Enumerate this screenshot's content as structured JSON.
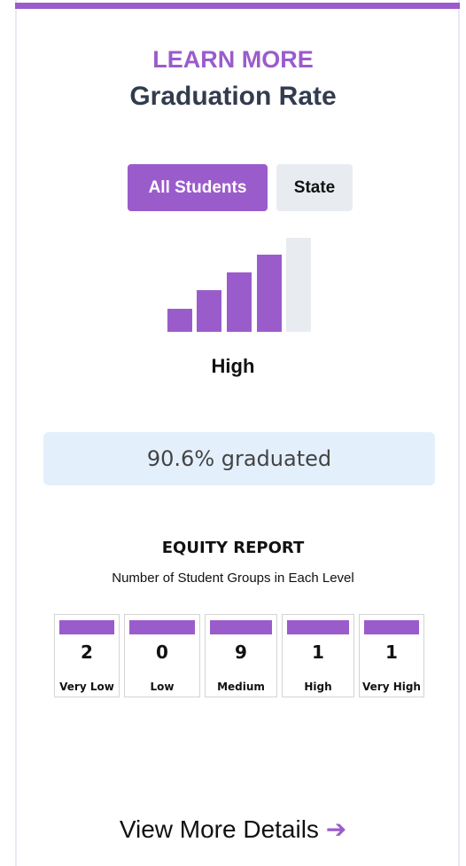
{
  "header": {
    "eyebrow": "LEARN MORE",
    "title": "Graduation Rate"
  },
  "tabs": [
    "All Students",
    "State"
  ],
  "level": "High",
  "result": "90.6% graduated",
  "equity": {
    "title": "EQUITY REPORT",
    "subtitle": "Number of Student Groups in Each Level",
    "groups": [
      {
        "count": 2,
        "label": "Very Low"
      },
      {
        "count": 0,
        "label": "Low"
      },
      {
        "count": 9,
        "label": "Medium"
      },
      {
        "count": 1,
        "label": "High"
      },
      {
        "count": 1,
        "label": "Very High"
      }
    ]
  },
  "link": "View More Details"
}
